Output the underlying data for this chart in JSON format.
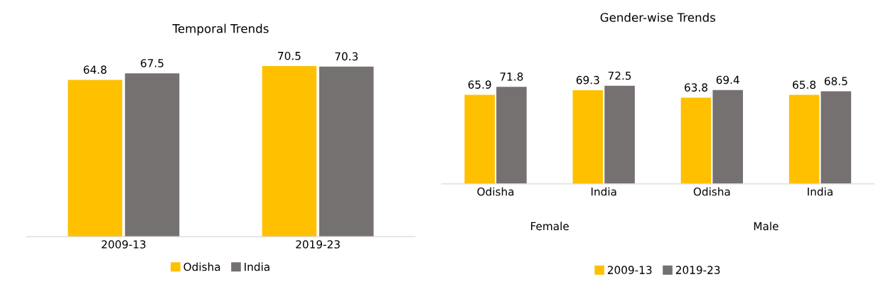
{
  "chart_data": [
    {
      "type": "bar",
      "title": "Temporal Trends",
      "categories": [
        "2009-13",
        "2019-23"
      ],
      "data_labels": true,
      "legend": "bottom",
      "grid": false,
      "tick_labels": "x",
      "series": [
        {
          "name": "Odisha",
          "color": "#ffc000",
          "values": [
            64.8,
            70.5
          ]
        },
        {
          "name": "India",
          "color": "#767171",
          "values": [
            67.5,
            70.3
          ]
        }
      ]
    },
    {
      "type": "bar",
      "title": "Gender-wise Trends",
      "categories": [
        "Odisha",
        "India",
        "Odisha",
        "India"
      ],
      "data_labels": true,
      "legend": "bottom",
      "grid": false,
      "tick_labels": "x",
      "annotations": [
        "Female",
        "Male"
      ],
      "series": [
        {
          "name": "2009-13",
          "color": "#ffc000",
          "values": [
            65.9,
            69.3,
            63.8,
            65.8
          ]
        },
        {
          "name": "2019-23",
          "color": "#767171",
          "values": [
            71.8,
            72.5,
            69.4,
            68.5
          ]
        }
      ]
    }
  ]
}
